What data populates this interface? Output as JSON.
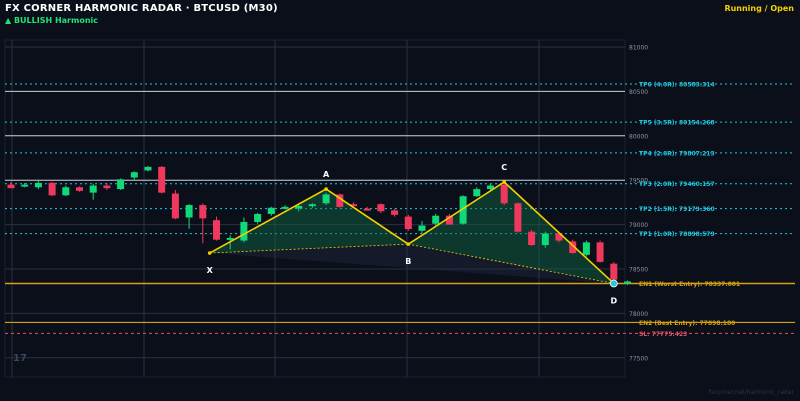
{
  "header": {
    "title": "FX CORNER HARMONIC RADAR  ·  BTCUSD (M30)",
    "subtitle": "▲ BULLISH  Harmonic",
    "status": "Running / Open"
  },
  "watermark": "fxcorner.net/harmonic_radar",
  "logo_text": "17",
  "colors": {
    "background": "#0b0f19",
    "bull": "#10d97a",
    "bear": "#f0385e",
    "pattern": "#f5d000",
    "tp_lines": "#22c8e0",
    "entry": "#d4a017",
    "sl": "#e0556a",
    "grid": "#2a3140",
    "axis_text": "#8c93a3"
  },
  "chart_data": {
    "type": "candlestick",
    "symbol": "BTCUSD",
    "timeframe": "M30",
    "ylim": [
      77300,
      81150
    ],
    "y_ticks": [
      81000,
      80500,
      80000,
      79500,
      79000,
      78500,
      78000,
      77500
    ],
    "candles": [
      {
        "o": 79450,
        "h": 79480,
        "l": 79420,
        "c": 79410
      },
      {
        "o": 79440,
        "h": 79470,
        "l": 79420,
        "c": 79450
      },
      {
        "o": 79420,
        "h": 79500,
        "l": 79400,
        "c": 79470
      },
      {
        "o": 79470,
        "h": 79480,
        "l": 79320,
        "c": 79330
      },
      {
        "o": 79330,
        "h": 79440,
        "l": 79320,
        "c": 79420
      },
      {
        "o": 79420,
        "h": 79430,
        "l": 79370,
        "c": 79380
      },
      {
        "o": 79360,
        "h": 79460,
        "l": 79280,
        "c": 79440
      },
      {
        "o": 79440,
        "h": 79470,
        "l": 79390,
        "c": 79410
      },
      {
        "o": 79400,
        "h": 79520,
        "l": 79390,
        "c": 79510
      },
      {
        "o": 79530,
        "h": 79600,
        "l": 79500,
        "c": 79590
      },
      {
        "o": 79610,
        "h": 79660,
        "l": 79600,
        "c": 79650
      },
      {
        "o": 79650,
        "h": 79660,
        "l": 79350,
        "c": 79360
      },
      {
        "o": 79350,
        "h": 79390,
        "l": 79060,
        "c": 79070
      },
      {
        "o": 79080,
        "h": 79230,
        "l": 78950,
        "c": 79220
      },
      {
        "o": 79220,
        "h": 79240,
        "l": 78790,
        "c": 79070
      },
      {
        "o": 79050,
        "h": 79090,
        "l": 78820,
        "c": 78830
      },
      {
        "o": 78830,
        "h": 78880,
        "l": 78720,
        "c": 78850
      },
      {
        "o": 78820,
        "h": 79080,
        "l": 78800,
        "c": 79030
      },
      {
        "o": 79030,
        "h": 79130,
        "l": 79010,
        "c": 79120
      },
      {
        "o": 79120,
        "h": 79200,
        "l": 79100,
        "c": 79190
      },
      {
        "o": 79190,
        "h": 79220,
        "l": 79170,
        "c": 79200
      },
      {
        "o": 79180,
        "h": 79220,
        "l": 79150,
        "c": 79210
      },
      {
        "o": 79210,
        "h": 79240,
        "l": 79190,
        "c": 79230
      },
      {
        "o": 79240,
        "h": 79360,
        "l": 79220,
        "c": 79340
      },
      {
        "o": 79340,
        "h": 79350,
        "l": 79190,
        "c": 79200
      },
      {
        "o": 79230,
        "h": 79250,
        "l": 79200,
        "c": 79220
      },
      {
        "o": 79180,
        "h": 79200,
        "l": 79160,
        "c": 79170
      },
      {
        "o": 79230,
        "h": 79240,
        "l": 79130,
        "c": 79150
      },
      {
        "o": 79160,
        "h": 79180,
        "l": 79090,
        "c": 79110
      },
      {
        "o": 79090,
        "h": 79110,
        "l": 78930,
        "c": 78950
      },
      {
        "o": 78930,
        "h": 79040,
        "l": 78900,
        "c": 78990
      },
      {
        "o": 79010,
        "h": 79120,
        "l": 78990,
        "c": 79100
      },
      {
        "o": 79100,
        "h": 79120,
        "l": 79020,
        "c": 79000
      },
      {
        "o": 79010,
        "h": 79330,
        "l": 79000,
        "c": 79320
      },
      {
        "o": 79320,
        "h": 79420,
        "l": 79310,
        "c": 79400
      },
      {
        "o": 79400,
        "h": 79460,
        "l": 79380,
        "c": 79440
      },
      {
        "o": 79450,
        "h": 79480,
        "l": 79220,
        "c": 79240
      },
      {
        "o": 79240,
        "h": 79250,
        "l": 78910,
        "c": 78920
      },
      {
        "o": 78920,
        "h": 78940,
        "l": 78760,
        "c": 78770
      },
      {
        "o": 78770,
        "h": 78920,
        "l": 78740,
        "c": 78900
      },
      {
        "o": 78900,
        "h": 78920,
        "l": 78800,
        "c": 78820
      },
      {
        "o": 78810,
        "h": 78830,
        "l": 78670,
        "c": 78680
      },
      {
        "o": 78660,
        "h": 78820,
        "l": 78640,
        "c": 78800
      },
      {
        "o": 78800,
        "h": 78820,
        "l": 78570,
        "c": 78580
      },
      {
        "o": 78560,
        "h": 78580,
        "l": 78330,
        "c": 78380
      },
      {
        "o": 78340,
        "h": 78370,
        "l": 78320,
        "c": 78360
      }
    ],
    "pattern_points": [
      {
        "label": "X",
        "index": 14.5,
        "price": 78680
      },
      {
        "label": "A",
        "index": 23.0,
        "price": 79400
      },
      {
        "label": "B",
        "index": 29.0,
        "price": 78780
      },
      {
        "label": "C",
        "index": 36.0,
        "price": 79480
      },
      {
        "label": "D",
        "index": 44.0,
        "price": 78337
      }
    ],
    "levels": [
      {
        "name": "tp6",
        "label": "TP6 (4.0R)",
        "value": "80583.314",
        "price": 80583.314,
        "kind": "tp"
      },
      {
        "name": "tp5",
        "label": "TP5 (3.5R)",
        "value": "80154.268",
        "price": 80154.268,
        "kind": "tp"
      },
      {
        "name": "tp4",
        "label": "TP4 (2.6R)",
        "value": "79807.213",
        "price": 79807.213,
        "kind": "tp"
      },
      {
        "name": "tp3",
        "label": "TP3 (2.0R)",
        "value": "79460.157",
        "price": 79460.157,
        "kind": "tp"
      },
      {
        "name": "tp2",
        "label": "TP2 (1.5R)",
        "value": "79179.360",
        "price": 79179.36,
        "kind": "tp"
      },
      {
        "name": "tp1",
        "label": "TP1 (1.0R)",
        "value": "78898.579",
        "price": 78898.579,
        "kind": "tp"
      },
      {
        "name": "en1",
        "label": "EN1 (Worst Entry)",
        "value": "78337.001",
        "price": 78337.001,
        "kind": "entry"
      },
      {
        "name": "en2",
        "label": "EN2 (Best Entry)",
        "value": "77898.180",
        "price": 77898.18,
        "kind": "entry"
      },
      {
        "name": "sl",
        "label": "SL",
        "value": "77775.423",
        "price": 77775.423,
        "kind": "sl"
      }
    ],
    "white_lines": [
      80500,
      80000,
      79500
    ],
    "grid": true
  }
}
